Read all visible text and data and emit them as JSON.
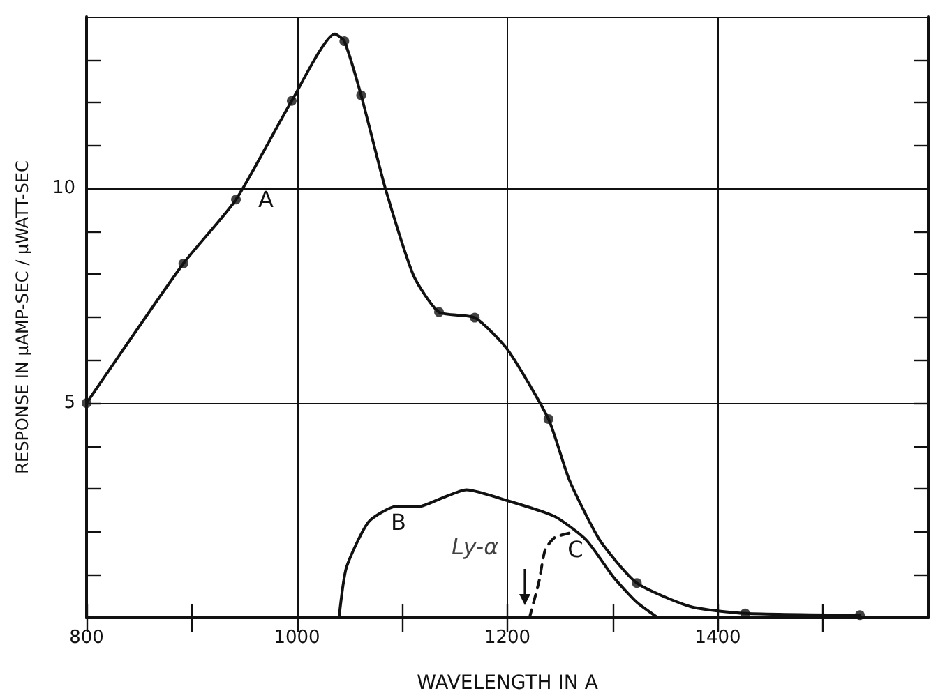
{
  "chart_data": {
    "type": "line",
    "xlabel": "WAVELENGTH IN A",
    "ylabel": "RESPONSE IN μAMP-SEC / μWATT-SEC",
    "xlim": [
      800,
      1600
    ],
    "ylim": [
      0,
      14
    ],
    "xticks": [
      800,
      {
        "value": 900,
        "label": null
      },
      1000,
      {
        "value": 1100,
        "label": null
      },
      1200,
      {
        "value": 1300,
        "label": null
      },
      1400,
      {
        "value": 1500,
        "label": null
      }
    ],
    "yticks": [
      {
        "value": 1,
        "label": null
      },
      {
        "value": 2,
        "label": null
      },
      {
        "value": 3,
        "label": null
      },
      {
        "value": 4,
        "label": null
      },
      5,
      {
        "value": 6,
        "label": null
      },
      {
        "value": 7,
        "label": null
      },
      {
        "value": 8,
        "label": null
      },
      {
        "value": 9,
        "label": null
      },
      10,
      {
        "value": 11,
        "label": null
      },
      {
        "value": 12,
        "label": null
      },
      {
        "value": 13,
        "label": null
      }
    ],
    "grid": true,
    "legend": false,
    "marker": "none",
    "line_style": "solid",
    "series": [
      {
        "name": "A",
        "color": "#111111",
        "x": [
          800,
          892,
          942,
          995,
          1036,
          1045,
          1061,
          1084,
          1111,
          1135,
          1169,
          1200,
          1239,
          1259,
          1288,
          1323,
          1374,
          1426,
          1535
        ],
        "values": [
          5.0,
          8.25,
          9.74,
          12.04,
          13.6,
          13.43,
          12.17,
          10.0,
          7.96,
          7.12,
          6.99,
          6.25,
          4.63,
          3.2,
          1.8,
          0.81,
          0.26,
          0.1,
          0.06
        ]
      },
      {
        "type": "scatter",
        "marker": "circle",
        "color": "#111111",
        "x": [
          800,
          892,
          942,
          995,
          1045,
          1061,
          1135,
          1169,
          1239,
          1323,
          1426,
          1535
        ],
        "values": [
          5.0,
          8.25,
          9.74,
          12.04,
          13.43,
          12.17,
          7.12,
          6.99,
          4.63,
          0.81,
          0.1,
          0.06
        ]
      },
      {
        "name": "B",
        "color": "#111111",
        "x": [
          1040,
          1047,
          1068,
          1094,
          1116,
          1137,
          1161,
          1201,
          1245,
          1275,
          1301,
          1323,
          1343
        ],
        "values": [
          0,
          1.17,
          2.23,
          2.59,
          2.59,
          2.78,
          2.98,
          2.72,
          2.36,
          1.81,
          0.94,
          0.36,
          0
        ]
      },
      {
        "name": "C",
        "color": "#111111",
        "line_style": "dashed",
        "x": [
          1221,
          1230,
          1236,
          1245,
          1259
        ],
        "values": [
          0,
          0.84,
          1.59,
          1.87,
          1.97
        ]
      }
    ],
    "annotations": [
      {
        "text": "Ly-α",
        "x": 1216,
        "y": 0.3
      }
    ]
  }
}
